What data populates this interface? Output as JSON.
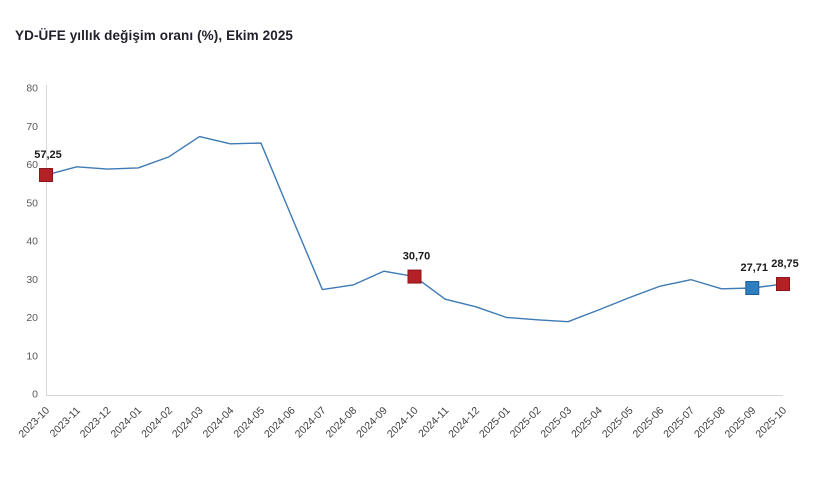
{
  "title": "YD-ÜFE yıllık değişim oranı (%), Ekim 2025",
  "colors": {
    "axis_line": "#d6d6d6",
    "y_tick_label": "#595959",
    "x_tick_label": "#404040",
    "data_label": "#1a1a1a",
    "title": "#21212b",
    "line": "#3e7ab4",
    "marker_red": "#b32025",
    "marker_red_border": "#8a161c",
    "marker_blue": "#2e7fc2",
    "marker_blue_border": "#1f5e94"
  },
  "chart_data": {
    "type": "line",
    "title": "YD-ÜFE yıllık değişim oranı (%), Ekim 2025",
    "xlabel": "",
    "ylabel": "",
    "grid": false,
    "legend": "none",
    "ylim": [
      0,
      80
    ],
    "ytick_step": 10,
    "ytick_labels": [
      "0",
      "10",
      "20",
      "30",
      "40",
      "50",
      "60",
      "70",
      "80"
    ],
    "line_color": "#3e7ab4",
    "categories": [
      "2023-10",
      "2023-11",
      "2023-12",
      "2024-01",
      "2024-02",
      "2024-03",
      "2024-04",
      "2024-05",
      "2024-06",
      "2024-07",
      "2024-08",
      "2024-09",
      "2024-10",
      "2024-11",
      "2024-12",
      "2025-01",
      "2025-02",
      "2025-03",
      "2025-04",
      "2025-05",
      "2025-06",
      "2025-07",
      "2025-08",
      "2025-09",
      "2025-10"
    ],
    "values": [
      57.25,
      59.4,
      58.8,
      59.1,
      62.0,
      67.3,
      65.4,
      65.6,
      46.3,
      27.3,
      28.5,
      32.1,
      30.7,
      24.8,
      22.8,
      20.0,
      19.4,
      18.9,
      22.0,
      25.2,
      28.2,
      29.9,
      27.5,
      27.71,
      28.75
    ],
    "highlights": [
      {
        "index": 0,
        "category": "2023-10",
        "value": 57.25,
        "value_label": "57,25",
        "marker": "red"
      },
      {
        "index": 12,
        "category": "2024-10",
        "value": 30.7,
        "value_label": "30,70",
        "marker": "red"
      },
      {
        "index": 23,
        "category": "2025-09",
        "value": 27.71,
        "value_label": "27,71",
        "marker": "blue"
      },
      {
        "index": 24,
        "category": "2025-10",
        "value": 28.75,
        "value_label": "28,75",
        "marker": "red"
      }
    ]
  }
}
